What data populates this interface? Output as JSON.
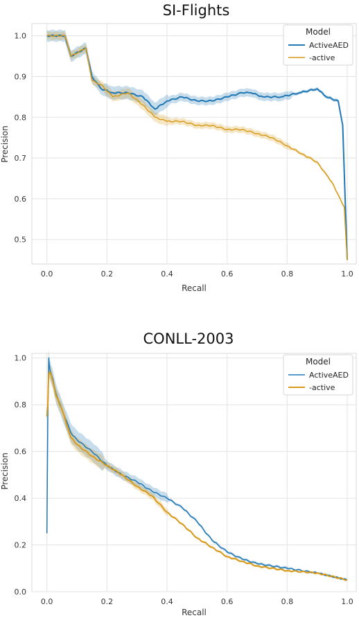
{
  "colors": {
    "activeaed": "#1f77b4",
    "minus_active": "#d89a1a",
    "grid": "#e3e3e3"
  },
  "chart_data": [
    {
      "type": "line",
      "title": "SI-Flights",
      "xlabel": "Recall",
      "ylabel": "Precision",
      "xlim": [
        -0.05,
        1.03
      ],
      "ylim": [
        0.44,
        1.03
      ],
      "xticks": [
        0.0,
        0.2,
        0.4,
        0.6,
        0.8,
        1.0
      ],
      "xtick_labels": [
        "0.0",
        "0.2",
        "0.4",
        "0.6",
        "0.8",
        "1.0"
      ],
      "yticks": [
        0.5,
        0.6,
        0.7,
        0.8,
        0.9,
        1.0
      ],
      "ytick_labels": [
        "0.5",
        "0.6",
        "0.7",
        "0.8",
        "0.9",
        "1.0"
      ],
      "grid": true,
      "legend": {
        "title": "Model",
        "position": "top-right"
      },
      "series": [
        {
          "name": "ActiveAED",
          "color": "#1f77b4",
          "x": [
            0.0,
            0.06,
            0.08,
            0.13,
            0.15,
            0.18,
            0.22,
            0.27,
            0.32,
            0.36,
            0.4,
            0.45,
            0.5,
            0.55,
            0.6,
            0.65,
            0.68,
            0.72,
            0.78,
            0.84,
            0.9,
            0.93,
            0.97,
            0.985,
            1.0
          ],
          "y": [
            1.0,
            1.0,
            0.95,
            0.97,
            0.9,
            0.87,
            0.86,
            0.86,
            0.85,
            0.82,
            0.84,
            0.85,
            0.84,
            0.84,
            0.85,
            0.86,
            0.86,
            0.85,
            0.85,
            0.86,
            0.87,
            0.85,
            0.84,
            0.78,
            0.45
          ]
        },
        {
          "name": "-active",
          "color": "#d89a1a",
          "x": [
            0.0,
            0.06,
            0.08,
            0.13,
            0.15,
            0.18,
            0.22,
            0.27,
            0.32,
            0.36,
            0.4,
            0.45,
            0.5,
            0.55,
            0.6,
            0.65,
            0.7,
            0.75,
            0.8,
            0.85,
            0.9,
            0.93,
            0.95,
            0.97,
            0.99,
            1.0
          ],
          "y": [
            1.0,
            1.0,
            0.95,
            0.97,
            0.89,
            0.88,
            0.85,
            0.86,
            0.83,
            0.8,
            0.79,
            0.79,
            0.78,
            0.78,
            0.77,
            0.77,
            0.76,
            0.75,
            0.73,
            0.71,
            0.69,
            0.66,
            0.64,
            0.61,
            0.58,
            0.45
          ]
        }
      ]
    },
    {
      "type": "line",
      "title": "CONLL-2003",
      "xlabel": "Recall",
      "ylabel": "Precision",
      "xlim": [
        -0.05,
        1.03
      ],
      "ylim": [
        0.0,
        1.02
      ],
      "xticks": [
        0.0,
        0.2,
        0.4,
        0.6,
        0.8,
        1.0
      ],
      "xtick_labels": [
        "0.0",
        "0.2",
        "0.4",
        "0.6",
        "0.8",
        "1.0"
      ],
      "yticks": [
        0.0,
        0.2,
        0.4,
        0.6,
        0.8,
        1.0
      ],
      "ytick_labels": [
        "0.0",
        "0.2",
        "0.4",
        "0.6",
        "0.8",
        "1.0"
      ],
      "grid": true,
      "legend": {
        "title": "Model",
        "position": "top-right"
      },
      "series": [
        {
          "name": "ActiveAED",
          "color": "#1f77b4",
          "x": [
            0.0,
            0.003,
            0.006,
            0.01,
            0.02,
            0.03,
            0.05,
            0.08,
            0.1,
            0.15,
            0.2,
            0.25,
            0.3,
            0.35,
            0.4,
            0.45,
            0.5,
            0.55,
            0.6,
            0.65,
            0.7,
            0.8,
            0.9,
            1.0
          ],
          "y": [
            0.25,
            0.75,
            1.0,
            0.95,
            0.91,
            0.85,
            0.78,
            0.68,
            0.65,
            0.6,
            0.54,
            0.5,
            0.47,
            0.43,
            0.4,
            0.36,
            0.3,
            0.22,
            0.17,
            0.14,
            0.12,
            0.1,
            0.08,
            0.05
          ]
        },
        {
          "name": "-active",
          "color": "#d89a1a",
          "x": [
            0.0,
            0.003,
            0.006,
            0.01,
            0.02,
            0.03,
            0.05,
            0.08,
            0.1,
            0.15,
            0.2,
            0.25,
            0.3,
            0.35,
            0.4,
            0.45,
            0.5,
            0.55,
            0.6,
            0.65,
            0.7,
            0.8,
            0.9,
            1.0
          ],
          "y": [
            0.75,
            0.8,
            0.93,
            0.94,
            0.9,
            0.84,
            0.78,
            0.66,
            0.63,
            0.58,
            0.54,
            0.5,
            0.45,
            0.41,
            0.34,
            0.29,
            0.23,
            0.19,
            0.15,
            0.13,
            0.11,
            0.09,
            0.08,
            0.05
          ]
        }
      ]
    }
  ]
}
